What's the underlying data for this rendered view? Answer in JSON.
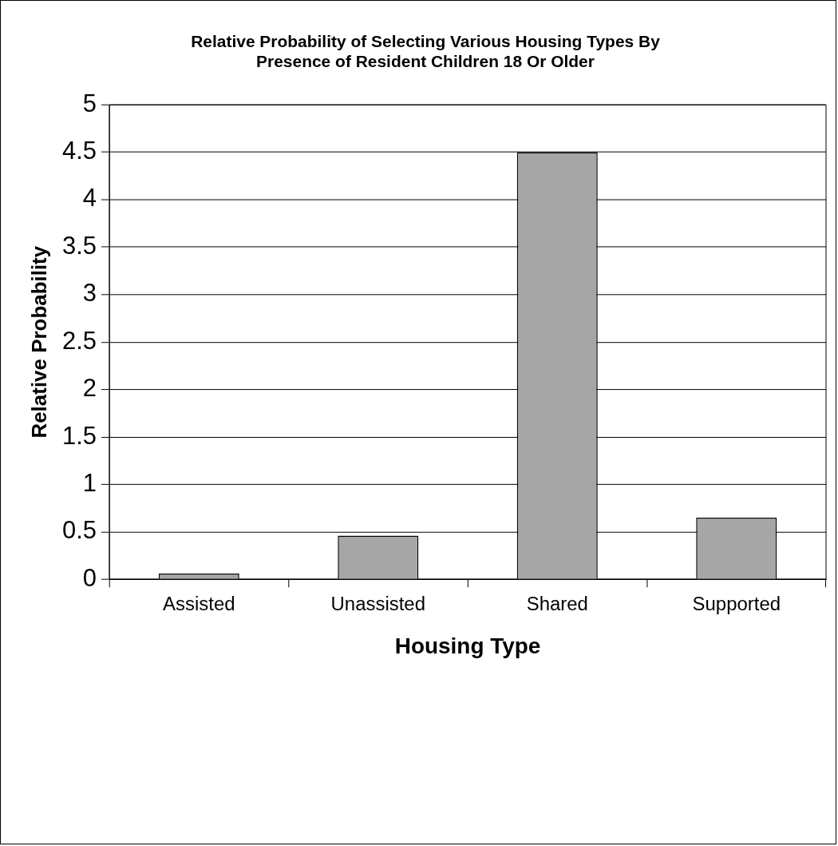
{
  "chart_data": {
    "type": "bar",
    "title": "Relative Probability of Selecting Various Housing Types By\nPresence of Resident Children 18 Or Older",
    "xlabel": "Housing Type",
    "ylabel": "Relative Probability",
    "categories": [
      "Assisted",
      "Unassisted",
      "Shared",
      "Supported"
    ],
    "values": [
      0.06,
      0.46,
      4.5,
      0.65
    ],
    "color": "#a6a6a6",
    "ylim": [
      0,
      5
    ],
    "yticks": [
      0,
      0.5,
      1,
      1.5,
      2,
      2.5,
      3,
      3.5,
      4,
      4.5,
      5
    ],
    "grid": "y",
    "legend": false
  }
}
